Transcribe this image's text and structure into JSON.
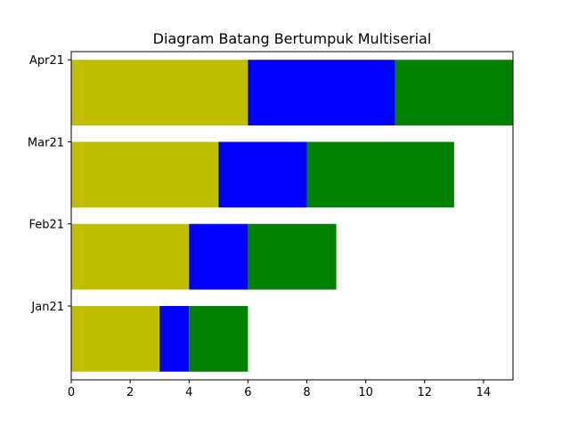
{
  "chart_data": {
    "type": "bar",
    "orientation": "horizontal",
    "stacked": true,
    "title": "Diagram Batang Bertumpuk Multiserial",
    "xlabel": "",
    "ylabel": "",
    "categories": [
      "Jan21",
      "Feb21",
      "Mar21",
      "Apr21"
    ],
    "series": [
      {
        "color": "#bfbf00",
        "values": [
          3,
          4,
          5,
          6
        ]
      },
      {
        "color": "#0000ff",
        "values": [
          1,
          2,
          3,
          5
        ]
      },
      {
        "color": "#008000",
        "values": [
          2,
          3,
          5,
          4
        ]
      }
    ],
    "xlim": [
      0,
      15
    ],
    "xticks": [
      0,
      2,
      4,
      6,
      8,
      10,
      12,
      14
    ],
    "grid": false,
    "legend": false
  }
}
